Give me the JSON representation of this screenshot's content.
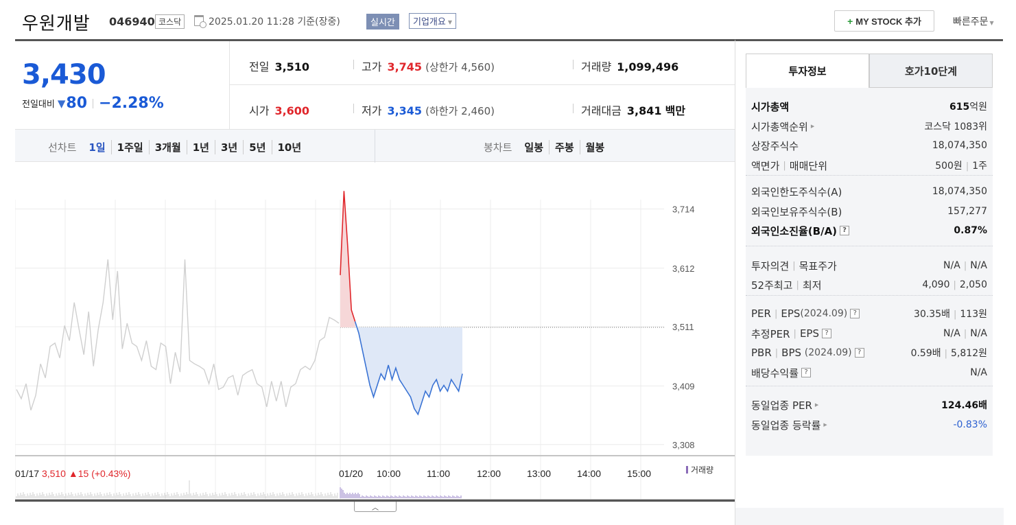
{
  "header": {
    "stock_name": "우원개발",
    "stock_code": "046940",
    "market": "코스닥",
    "timestamp": "2025.01.20 11:28 기준(장중)",
    "realtime_label": "실시간",
    "corp_info_label": "기업개요",
    "mystock_label": "MY STOCK 추가",
    "quick_order_label": "빠른주문"
  },
  "price": {
    "current": "3,430",
    "change_label": "전일대비",
    "change_arrow": "▼",
    "change": "80",
    "change_pct": "−2.28%"
  },
  "quote": {
    "prev_label": "전일",
    "prev": "3,510",
    "high_label": "고가",
    "high": "3,745",
    "upper_limit": "(상한가 4,560)",
    "volume_label": "거래량",
    "volume": "1,099,496",
    "open_label": "시가",
    "open": "3,600",
    "low_label": "저가",
    "low": "3,345",
    "lower_limit": "(하한가 2,460)",
    "amount_label": "거래대금",
    "amount": "3,841",
    "amount_unit": "백만"
  },
  "chart_tabs": {
    "line_label": "선차트",
    "periods": [
      "1일",
      "1주일",
      "3개월",
      "1년",
      "3년",
      "5년",
      "10년"
    ],
    "active": "1일",
    "candle_label": "봉차트",
    "candles": [
      "일봉",
      "주봉",
      "월봉"
    ]
  },
  "chart_data": {
    "type": "line",
    "y_ticks": [
      "3,714",
      "3,612",
      "3,511",
      "3,409",
      "3,308"
    ],
    "ylim": [
      3300,
      3730
    ],
    "prev_close": 3510,
    "volume_legend": "거래량",
    "x_ticks": [
      "01/17",
      "01/20",
      "10:00",
      "11:00",
      "12:00",
      "13:00",
      "14:00",
      "15:00"
    ],
    "prev_day_label": "01/17",
    "prev_day_close": "3,510",
    "prev_day_change": "▲15 (+0.43%)",
    "series": [
      {
        "x": [
          "09:00",
          "09:02",
          "09:05",
          "09:08",
          "09:10",
          "09:13",
          "09:16",
          "09:20",
          "09:25",
          "09:30",
          "09:35",
          "09:40",
          "09:45",
          "09:50",
          "09:55",
          "10:00",
          "10:05",
          "10:10",
          "10:15",
          "10:20",
          "10:25",
          "10:30",
          "10:35",
          "10:40",
          "10:45",
          "10:50",
          "10:55",
          "11:00",
          "11:05",
          "11:10",
          "11:15",
          "11:20",
          "11:25",
          "11:28"
        ],
        "values": [
          3600,
          3745,
          3650,
          3540,
          3520,
          3500,
          3470,
          3440,
          3410,
          3390,
          3410,
          3430,
          3420,
          3445,
          3420,
          3440,
          3420,
          3410,
          3400,
          3390,
          3370,
          3360,
          3380,
          3400,
          3390,
          3410,
          3420,
          3400,
          3410,
          3400,
          3420,
          3410,
          3400,
          3430
        ]
      }
    ]
  },
  "invest_tabs": {
    "active": "투자정보",
    "other": "호가10단계"
  },
  "invest": {
    "mcap_label": "시가총액",
    "mcap_num": "615",
    "mcap_unit": "억원",
    "mcap_rank_label": "시가총액순위",
    "mcap_rank": "코스닥 1083위",
    "shares_label": "상장주식수",
    "shares": "18,074,350",
    "par_label": "액면가",
    "unit_label": "매매단위",
    "par": "500원",
    "unit": "1주",
    "foreign_limit_label": "외국인한도주식수(A)",
    "foreign_limit": "18,074,350",
    "foreign_hold_label": "외국인보유주식수(B)",
    "foreign_hold": "157,277",
    "foreign_ratio_label": "외국인소진율(B/A)",
    "foreign_ratio": "0.87%",
    "opinion_label": "투자의견",
    "target_label": "목표주가",
    "opinion": "N/A",
    "target": "N/A",
    "w52_high_label": "52주최고",
    "w52_low_label": "최저",
    "w52_high": "4,090",
    "w52_low": "2,050",
    "per_label": "PER",
    "eps_label": "EPS",
    "per_eps_year": "(2024.09)",
    "per": "30.35배",
    "eps": "113원",
    "est_per_label": "추정PER",
    "est_eps_label": "EPS",
    "est_per": "N/A",
    "est_eps": "N/A",
    "pbr_label": "PBR",
    "bps_label": "BPS",
    "pbr_bps_year": "(2024.09)",
    "pbr": "0.59배",
    "bps": "5,812원",
    "div_label": "배당수익률",
    "div": "N/A",
    "sector_per_label": "동일업종 PER",
    "sector_per": "124.46배",
    "sector_chg_label": "동일업종 등락률",
    "sector_chg": "-0.83%"
  },
  "colors": {
    "up": "#e0262b",
    "down": "#1a5ad6",
    "accent": "#2955c0"
  }
}
